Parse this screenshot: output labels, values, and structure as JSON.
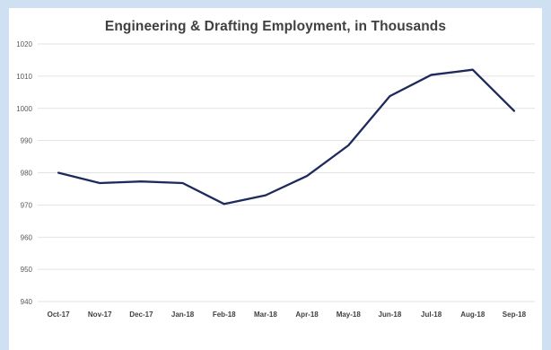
{
  "chart_data": {
    "type": "line",
    "title": "Engineering & Drafting Employment, in Thousands",
    "categories": [
      "Oct-17",
      "Nov-17",
      "Dec-17",
      "Jan-18",
      "Feb-18",
      "Mar-18",
      "Apr-18",
      "May-18",
      "Jun-18",
      "Jul-18",
      "Aug-18",
      "Sep-18"
    ],
    "series": [
      {
        "values": [
          980,
          976.8,
          977.3,
          976.8,
          970.3,
          973,
          979,
          988.5,
          1003.8,
          1010.4,
          1012,
          999.2
        ]
      }
    ],
    "ylim": [
      940,
      1020
    ],
    "yticks": [
      940,
      950,
      960,
      970,
      980,
      990,
      1000,
      1010,
      1020
    ],
    "grid": true,
    "line_color": "#1f2a5c",
    "grid_color": "#d9d9d9",
    "background_color": "#cfe0f3"
  }
}
